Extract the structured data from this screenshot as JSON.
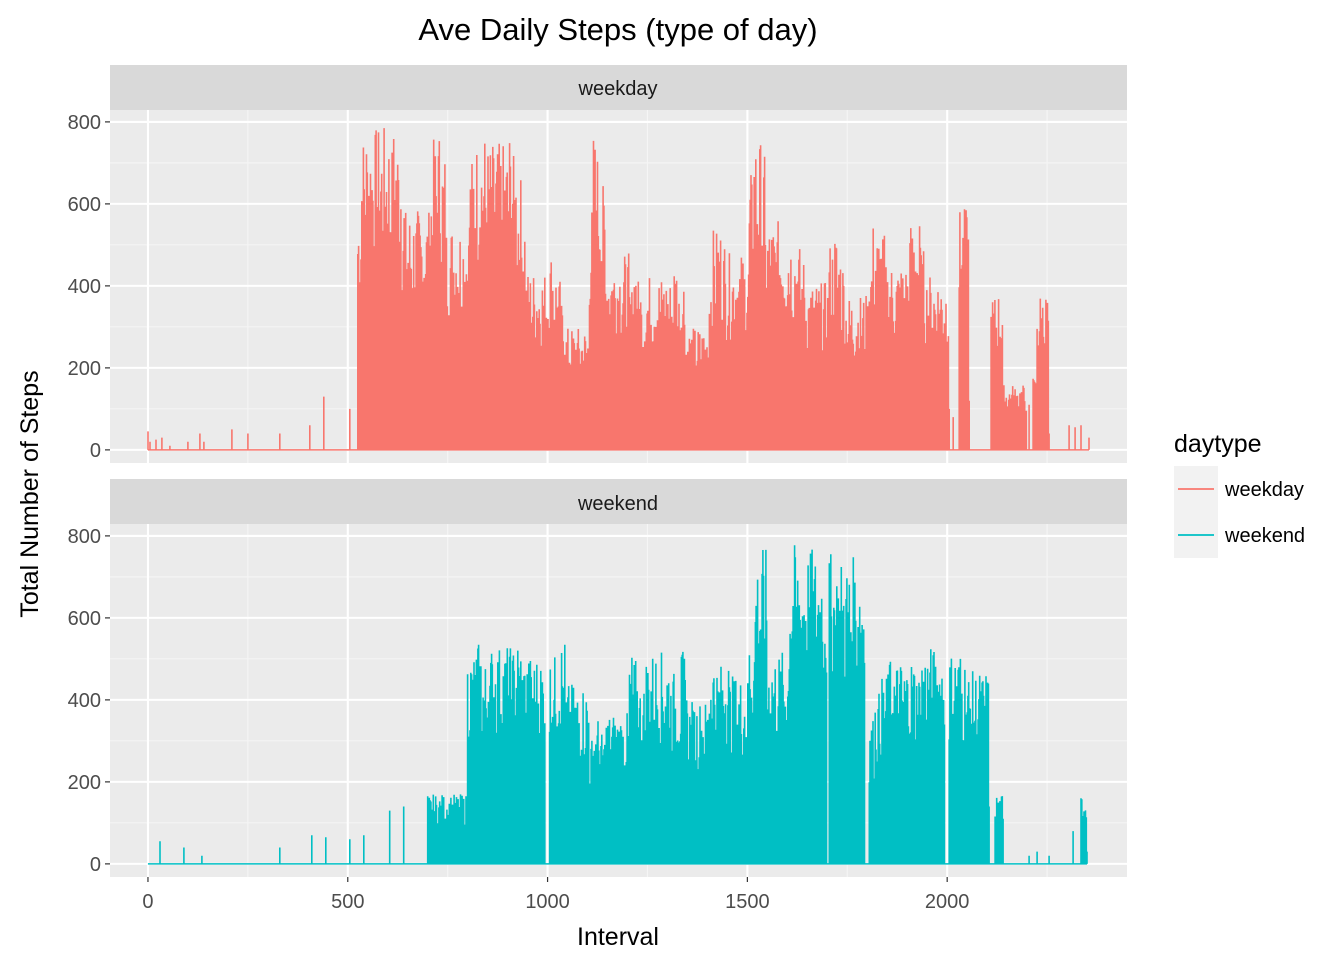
{
  "chart_data": {
    "type": "line",
    "title": "Ave Daily Steps (type of day)",
    "xlabel": "Interval",
    "ylabel": "Total Number of Steps",
    "xlim": [
      -95,
      2450
    ],
    "ylim": [
      -32,
      829
    ],
    "x_ticks": [
      0,
      500,
      1000,
      1500,
      2000
    ],
    "y_ticks": [
      0,
      200,
      400,
      600,
      800
    ],
    "grid": true,
    "legend": {
      "title": "daytype",
      "position": "right",
      "entries": [
        {
          "label": "weekday",
          "color": "#F8766D"
        },
        {
          "label": "weekend",
          "color": "#00BFC4"
        }
      ]
    },
    "panels": [
      {
        "label": "weekday",
        "color": "#F8766D",
        "x": [
          0,
          5,
          20,
          35,
          55,
          100,
          130,
          140,
          210,
          250,
          330,
          405,
          440,
          505,
          525,
          535,
          545,
          555,
          605,
          615,
          625,
          635,
          645,
          705,
          715,
          725,
          735,
          745,
          805,
          815,
          825,
          835,
          845,
          905,
          915,
          925,
          935,
          945,
          1005,
          1015,
          1025,
          1035,
          1045,
          1105,
          1115,
          1125,
          1135,
          1145,
          1205,
          1215,
          1225,
          1235,
          1245,
          1305,
          1315,
          1325,
          1335,
          1345,
          1405,
          1415,
          1425,
          1435,
          1445,
          1505,
          1515,
          1525,
          1535,
          1545,
          1605,
          1615,
          1625,
          1635,
          1645,
          1705,
          1715,
          1725,
          1735,
          1745,
          1805,
          1815,
          1825,
          1835,
          1845,
          1905,
          1915,
          1925,
          1935,
          1945,
          2005,
          2015,
          2030,
          2055,
          2110,
          2125,
          2140,
          2205,
          2215,
          2225,
          2255,
          2305,
          2320,
          2335,
          2355
        ],
        "values": [
          45,
          20,
          25,
          30,
          10,
          20,
          40,
          20,
          50,
          40,
          40,
          60,
          130,
          100,
          620,
          780,
          800,
          790,
          750,
          800,
          780,
          660,
          590,
          700,
          760,
          790,
          740,
          560,
          720,
          760,
          790,
          780,
          750,
          790,
          720,
          670,
          600,
          440,
          490,
          450,
          420,
          360,
          300,
          600,
          780,
          740,
          650,
          480,
          400,
          480,
          420,
          380,
          430,
          420,
          470,
          400,
          440,
          300,
          460,
          540,
          550,
          520,
          480,
          680,
          780,
          760,
          720,
          560,
          540,
          520,
          500,
          470,
          410,
          510,
          540,
          500,
          470,
          380,
          490,
          560,
          540,
          530,
          460,
          560,
          580,
          560,
          490,
          430,
          100,
          80,
          590,
          120,
          380,
          390,
          160,
          110,
          180,
          390,
          40,
          60,
          55,
          60,
          30
        ]
      },
      {
        "label": "weekend",
        "color": "#00BFC4",
        "x": [
          0,
          30,
          90,
          135,
          330,
          410,
          445,
          505,
          540,
          605,
          640,
          700,
          740,
          800,
          820,
          835,
          850,
          905,
          920,
          935,
          1005,
          1020,
          1035,
          1045,
          1105,
          1115,
          1130,
          1145,
          1205,
          1215,
          1230,
          1245,
          1305,
          1320,
          1335,
          1350,
          1405,
          1420,
          1440,
          1455,
          1505,
          1520,
          1535,
          1550,
          1605,
          1620,
          1640,
          1705,
          1720,
          1735,
          1805,
          1820,
          1835,
          1850,
          1905,
          1920,
          1935,
          2005,
          2020,
          2035,
          2050,
          2105,
          2120,
          2140,
          2205,
          2225,
          2255,
          2315,
          2335,
          2350
        ],
        "values": [
          0,
          55,
          40,
          20,
          40,
          70,
          65,
          60,
          70,
          130,
          140,
          170,
          170,
          520,
          545,
          500,
          535,
          530,
          550,
          510,
          510,
          540,
          550,
          440,
          310,
          360,
          320,
          370,
          520,
          500,
          440,
          520,
          470,
          470,
          520,
          400,
          520,
          490,
          520,
          460,
          580,
          760,
          770,
          520,
          780,
          770,
          770,
          760,
          740,
          750,
          360,
          420,
          460,
          500,
          510,
          480,
          530,
          520,
          530,
          510,
          470,
          140,
          170,
          110,
          20,
          30,
          20,
          80,
          175,
          30
        ]
      }
    ]
  }
}
